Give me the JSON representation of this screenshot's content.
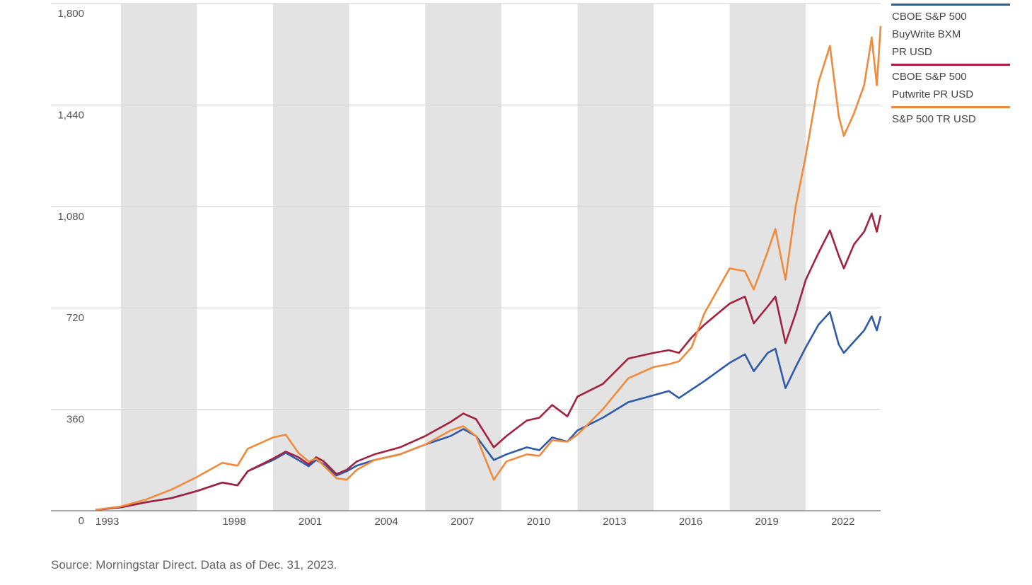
{
  "source_note": "Source: Morningstar Direct. Data as of Dec. 31, 2023.",
  "chart_data": {
    "type": "line",
    "ylim": [
      0,
      1800
    ],
    "xlim": [
      1993.0,
      2023.95
    ],
    "y_ticks": [
      {
        "value": 0,
        "label": "0"
      },
      {
        "value": 360,
        "label": "360"
      },
      {
        "value": 720,
        "label": "720"
      },
      {
        "value": 1080,
        "label": "1,080"
      },
      {
        "value": 1440,
        "label": "1,440"
      },
      {
        "value": 1800,
        "label": "1,800"
      }
    ],
    "x_ticks": [
      {
        "value": 1993.0,
        "label": "1993"
      },
      {
        "value": 1998.0,
        "label": "1998"
      },
      {
        "value": 2001.0,
        "label": "2001"
      },
      {
        "value": 2004.0,
        "label": "2004"
      },
      {
        "value": 2007.0,
        "label": "2007"
      },
      {
        "value": 2010.0,
        "label": "2010"
      },
      {
        "value": 2013.0,
        "label": "2013"
      },
      {
        "value": 2016.0,
        "label": "2016"
      },
      {
        "value": 2019.0,
        "label": "2019"
      },
      {
        "value": 2022.0,
        "label": "2022"
      }
    ],
    "shaded_bands": [
      [
        1994.0,
        1997.0
      ],
      [
        2000.0,
        2003.0
      ],
      [
        2006.0,
        2009.0
      ],
      [
        2012.0,
        2015.0
      ],
      [
        2018.0,
        2021.0
      ]
    ],
    "band_color": "#e3e3e3",
    "grid": true,
    "legend_position": "right",
    "series": [
      {
        "name": "CBOE S&P 500 BuyWrite BXM PR USD",
        "legend_lines": [
          "CBOE S&P 500",
          "BuyWrite BXM",
          "PR USD"
        ],
        "color": "#2f5aa8",
        "points": [
          [
            1993.0,
            3
          ],
          [
            1994.0,
            12
          ],
          [
            1995.0,
            30
          ],
          [
            1996.0,
            45
          ],
          [
            1997.0,
            70
          ],
          [
            1998.0,
            100
          ],
          [
            1998.6,
            90
          ],
          [
            1999.0,
            140
          ],
          [
            2000.0,
            180
          ],
          [
            2000.5,
            205
          ],
          [
            2001.0,
            180
          ],
          [
            2001.4,
            158
          ],
          [
            2001.7,
            180
          ],
          [
            2002.0,
            165
          ],
          [
            2002.5,
            125
          ],
          [
            2002.9,
            140
          ],
          [
            2003.3,
            160
          ],
          [
            2004.0,
            180
          ],
          [
            2005.0,
            200
          ],
          [
            2006.0,
            235
          ],
          [
            2007.0,
            265
          ],
          [
            2007.5,
            290
          ],
          [
            2008.0,
            265
          ],
          [
            2008.7,
            180
          ],
          [
            2009.2,
            200
          ],
          [
            2010.0,
            225
          ],
          [
            2010.5,
            215
          ],
          [
            2011.0,
            260
          ],
          [
            2011.6,
            245
          ],
          [
            2012.0,
            285
          ],
          [
            2013.0,
            330
          ],
          [
            2014.0,
            385
          ],
          [
            2015.0,
            410
          ],
          [
            2015.6,
            425
          ],
          [
            2016.0,
            400
          ],
          [
            2016.5,
            430
          ],
          [
            2017.0,
            460
          ],
          [
            2018.0,
            525
          ],
          [
            2018.6,
            555
          ],
          [
            2018.95,
            495
          ],
          [
            2019.5,
            560
          ],
          [
            2019.8,
            575
          ],
          [
            2020.2,
            435
          ],
          [
            2020.6,
            510
          ],
          [
            2021.0,
            580
          ],
          [
            2021.5,
            660
          ],
          [
            2021.95,
            705
          ],
          [
            2022.3,
            590
          ],
          [
            2022.5,
            560
          ],
          [
            2022.9,
            600
          ],
          [
            2023.3,
            640
          ],
          [
            2023.6,
            690
          ],
          [
            2023.8,
            640
          ],
          [
            2023.95,
            690
          ]
        ]
      },
      {
        "name": "CBOE S&P 500 Putwrite PR USD",
        "legend_lines": [
          "CBOE S&P 500",
          "Putwrite PR USD"
        ],
        "color": "#a3213f",
        "points": [
          [
            1993.0,
            3
          ],
          [
            1994.0,
            12
          ],
          [
            1995.0,
            30
          ],
          [
            1996.0,
            45
          ],
          [
            1997.0,
            70
          ],
          [
            1998.0,
            100
          ],
          [
            1998.6,
            90
          ],
          [
            1999.0,
            140
          ],
          [
            2000.0,
            185
          ],
          [
            2000.5,
            210
          ],
          [
            2001.0,
            190
          ],
          [
            2001.4,
            165
          ],
          [
            2001.7,
            190
          ],
          [
            2002.0,
            175
          ],
          [
            2002.5,
            130
          ],
          [
            2002.9,
            145
          ],
          [
            2003.3,
            175
          ],
          [
            2004.0,
            200
          ],
          [
            2005.0,
            225
          ],
          [
            2006.0,
            265
          ],
          [
            2007.0,
            315
          ],
          [
            2007.5,
            345
          ],
          [
            2008.0,
            325
          ],
          [
            2008.7,
            225
          ],
          [
            2009.2,
            265
          ],
          [
            2010.0,
            320
          ],
          [
            2010.5,
            330
          ],
          [
            2011.0,
            375
          ],
          [
            2011.6,
            335
          ],
          [
            2012.0,
            405
          ],
          [
            2013.0,
            450
          ],
          [
            2014.0,
            540
          ],
          [
            2015.0,
            560
          ],
          [
            2015.6,
            570
          ],
          [
            2016.0,
            560
          ],
          [
            2016.5,
            615
          ],
          [
            2017.0,
            660
          ],
          [
            2018.0,
            735
          ],
          [
            2018.6,
            760
          ],
          [
            2018.95,
            665
          ],
          [
            2019.5,
            725
          ],
          [
            2019.8,
            760
          ],
          [
            2020.2,
            595
          ],
          [
            2020.6,
            700
          ],
          [
            2021.0,
            820
          ],
          [
            2021.5,
            915
          ],
          [
            2021.95,
            995
          ],
          [
            2022.3,
            905
          ],
          [
            2022.5,
            860
          ],
          [
            2022.9,
            945
          ],
          [
            2023.3,
            990
          ],
          [
            2023.6,
            1055
          ],
          [
            2023.8,
            990
          ],
          [
            2023.95,
            1050
          ]
        ]
      },
      {
        "name": "S&P 500 TR USD",
        "legend_lines": [
          "S&P 500 TR USD"
        ],
        "color": "#f08a3c",
        "points": [
          [
            1993.0,
            3
          ],
          [
            1994.0,
            15
          ],
          [
            1995.0,
            40
          ],
          [
            1996.0,
            75
          ],
          [
            1997.0,
            120
          ],
          [
            1998.0,
            170
          ],
          [
            1998.6,
            160
          ],
          [
            1999.0,
            220
          ],
          [
            2000.0,
            260
          ],
          [
            2000.5,
            270
          ],
          [
            2001.0,
            205
          ],
          [
            2001.4,
            175
          ],
          [
            2001.7,
            185
          ],
          [
            2002.0,
            160
          ],
          [
            2002.5,
            115
          ],
          [
            2002.9,
            110
          ],
          [
            2003.3,
            145
          ],
          [
            2004.0,
            180
          ],
          [
            2005.0,
            200
          ],
          [
            2006.0,
            235
          ],
          [
            2007.0,
            285
          ],
          [
            2007.5,
            300
          ],
          [
            2008.0,
            265
          ],
          [
            2008.7,
            110
          ],
          [
            2009.2,
            175
          ],
          [
            2010.0,
            200
          ],
          [
            2010.5,
            195
          ],
          [
            2011.0,
            250
          ],
          [
            2011.6,
            245
          ],
          [
            2012.0,
            270
          ],
          [
            2013.0,
            360
          ],
          [
            2014.0,
            470
          ],
          [
            2015.0,
            510
          ],
          [
            2015.6,
            520
          ],
          [
            2016.0,
            530
          ],
          [
            2016.5,
            580
          ],
          [
            2017.0,
            700
          ],
          [
            2018.0,
            860
          ],
          [
            2018.6,
            850
          ],
          [
            2018.95,
            785
          ],
          [
            2019.5,
            920
          ],
          [
            2019.8,
            1000
          ],
          [
            2020.2,
            820
          ],
          [
            2020.6,
            1080
          ],
          [
            2021.0,
            1260
          ],
          [
            2021.5,
            1520
          ],
          [
            2021.95,
            1650
          ],
          [
            2022.3,
            1400
          ],
          [
            2022.5,
            1330
          ],
          [
            2022.9,
            1410
          ],
          [
            2023.3,
            1510
          ],
          [
            2023.6,
            1680
          ],
          [
            2023.8,
            1510
          ],
          [
            2023.95,
            1720
          ]
        ]
      }
    ]
  }
}
